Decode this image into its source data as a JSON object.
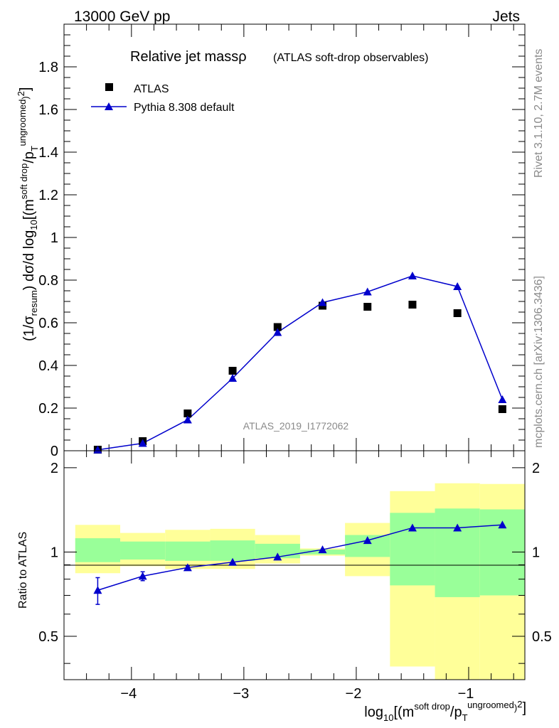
{
  "header": {
    "left": "13000 GeV pp",
    "right": "Jets"
  },
  "title": {
    "main": "Relative jet massρ",
    "sub": "(ATLAS soft-drop observables)"
  },
  "side_labels": {
    "rivet": "Rivet 3.1.10,  2.7M events",
    "mcplots": "mcplots.cern.ch [arXiv:1306.3436]"
  },
  "watermark": "ATLAS_2019_I1772062",
  "legend": {
    "data_label": "ATLAS",
    "mc_label": "Pythia 8.308 default"
  },
  "axes": {
    "ylabel_main": "(1/σresum) dσ/d log10[(m^soft drop/pT^ungroomed)2]",
    "ylabel_ratio": "Ratio to ATLAS",
    "xlabel": "log10[(m^soft drop/pT^ungroomed)2]"
  },
  "colors": {
    "mc": "#0000cc",
    "data": "#000000",
    "band_inner": "#99ff99",
    "band_outer": "#ffff99"
  },
  "chart_data": [
    {
      "type": "scatter",
      "panel": "main",
      "xlim": [
        -4.6,
        -0.5
      ],
      "ylim": [
        0,
        2.0
      ],
      "yticks": [
        0,
        0.2,
        0.4,
        0.6,
        0.8,
        1,
        1.2,
        1.4,
        1.6,
        1.8
      ],
      "series": [
        {
          "name": "ATLAS",
          "marker": "square",
          "x": [
            -4.3,
            -3.9,
            -3.5,
            -3.1,
            -2.7,
            -2.3,
            -1.9,
            -1.5,
            -1.1,
            -0.7
          ],
          "y": [
            0.005,
            0.045,
            0.175,
            0.375,
            0.58,
            0.68,
            0.675,
            0.685,
            0.645,
            0.195
          ]
        },
        {
          "name": "Pythia 8.308 default",
          "marker": "triangle",
          "x": [
            -4.3,
            -3.9,
            -3.5,
            -3.1,
            -2.7,
            -2.3,
            -1.9,
            -1.5,
            -1.1,
            -0.7
          ],
          "y": [
            0.004,
            0.035,
            0.145,
            0.34,
            0.555,
            0.695,
            0.745,
            0.82,
            0.77,
            0.24
          ]
        }
      ]
    },
    {
      "type": "line",
      "panel": "ratio",
      "xlim": [
        -4.6,
        -0.5
      ],
      "ylim": [
        0.35,
        2.3
      ],
      "yscale": "log",
      "yticks": [
        0.5,
        1,
        2
      ],
      "xticks": [
        -4,
        -3,
        -2,
        -1
      ],
      "bins": [
        {
          "lo": -4.5,
          "hi": -4.1,
          "inner": [
            0.92,
            1.12
          ],
          "outer": [
            0.84,
            1.25
          ]
        },
        {
          "lo": -4.1,
          "hi": -3.7,
          "inner": [
            0.94,
            1.09
          ],
          "outer": [
            0.89,
            1.17
          ]
        },
        {
          "lo": -3.7,
          "hi": -3.3,
          "inner": [
            0.93,
            1.09
          ],
          "outer": [
            0.87,
            1.2
          ]
        },
        {
          "lo": -3.3,
          "hi": -2.9,
          "inner": [
            0.93,
            1.1
          ],
          "outer": [
            0.87,
            1.21
          ]
        },
        {
          "lo": -2.9,
          "hi": -2.5,
          "inner": [
            0.95,
            1.07
          ],
          "outer": [
            0.91,
            1.15
          ]
        },
        {
          "lo": -2.5,
          "hi": -2.1,
          "inner": [
            0.98,
            1.02
          ],
          "outer": [
            0.97,
            1.03
          ]
        },
        {
          "lo": -2.1,
          "hi": -1.7,
          "inner": [
            0.96,
            1.15
          ],
          "outer": [
            0.82,
            1.27
          ]
        },
        {
          "lo": -1.7,
          "hi": -1.3,
          "inner": [
            0.76,
            1.38
          ],
          "outer": [
            0.39,
            1.65
          ]
        },
        {
          "lo": -1.3,
          "hi": -0.9,
          "inner": [
            0.69,
            1.43
          ],
          "outer": [
            0.33,
            1.76
          ]
        },
        {
          "lo": -0.9,
          "hi": -0.5,
          "inner": [
            0.7,
            1.42
          ],
          "outer": [
            0.35,
            1.75
          ]
        }
      ],
      "series": [
        {
          "name": "Pythia 8.308 default",
          "x": [
            -4.3,
            -3.9,
            -3.5,
            -3.1,
            -2.7,
            -2.3,
            -1.9,
            -1.5,
            -1.1,
            -0.7
          ],
          "y": [
            0.73,
            0.82,
            0.88,
            0.92,
            0.96,
            1.02,
            1.1,
            1.22,
            1.22,
            1.25
          ],
          "err": [
            0.08,
            0.03,
            0.012,
            0.01,
            0.008,
            0.006,
            0.006,
            0.008,
            0.008,
            0.01
          ]
        }
      ]
    }
  ]
}
